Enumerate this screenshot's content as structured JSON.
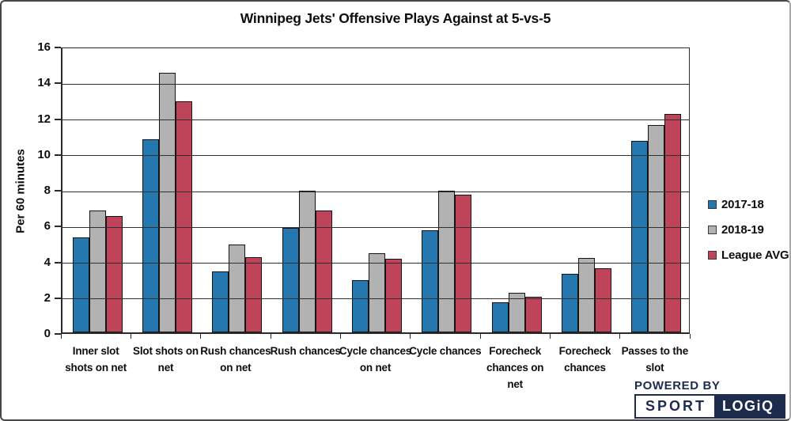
{
  "chart_data": {
    "type": "bar",
    "title": "Winnipeg Jets' Offensive Plays Against at 5-vs-5",
    "xlabel": "",
    "ylabel": "Per 60 minutes",
    "ylim": [
      0,
      16
    ],
    "ytick_step": 2,
    "grid": true,
    "gridlines_over_bars": true,
    "legend_position": "right",
    "categories": [
      "Inner slot shots on net",
      "Slot shots on net",
      "Rush chances on net",
      "Rush chances",
      "Cycle chances on net",
      "Cycle chances",
      "Forecheck chances on net",
      "Forecheck chances",
      "Passes to the slot"
    ],
    "series": [
      {
        "name": "2017-18",
        "color": "#2478af",
        "values": [
          5.3,
          10.8,
          3.4,
          5.85,
          2.9,
          5.7,
          1.7,
          3.25,
          10.7
        ]
      },
      {
        "name": "2018-19",
        "color": "#b2b2b3",
        "values": [
          6.8,
          14.5,
          4.9,
          7.9,
          4.4,
          7.9,
          2.2,
          4.15,
          11.6
        ]
      },
      {
        "name": "League AVG",
        "color": "#c04459",
        "values": [
          6.5,
          12.9,
          4.2,
          6.8,
          4.1,
          7.7,
          2.0,
          3.6,
          12.2
        ]
      }
    ]
  },
  "branding": {
    "powered_by": "POWERED BY",
    "logo_left": "SPORT",
    "logo_right": "LOGiQ",
    "navy": "#1d2b4d"
  }
}
